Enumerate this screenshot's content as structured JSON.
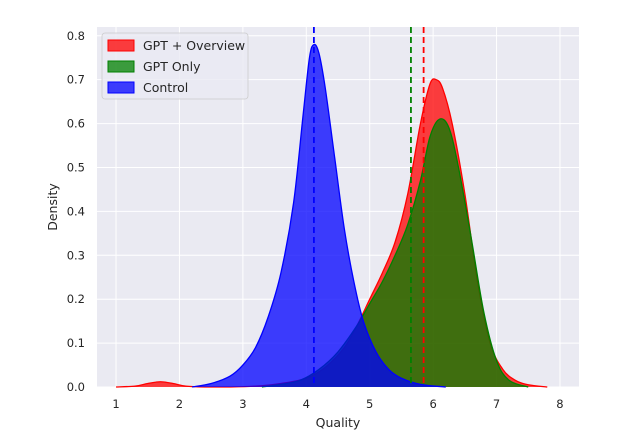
{
  "chart_data": {
    "type": "area",
    "title": "",
    "xlabel": "Quality",
    "ylabel": "Density",
    "xlim": [
      0.7,
      8.3
    ],
    "ylim": [
      0,
      0.82
    ],
    "xticks": [
      1,
      2,
      3,
      4,
      5,
      6,
      7,
      8
    ],
    "yticks": [
      0.0,
      0.1,
      0.2,
      0.3,
      0.4,
      0.5,
      0.6,
      0.7,
      0.8
    ],
    "x_tick_labels": [
      "1",
      "2",
      "3",
      "4",
      "5",
      "6",
      "7",
      "8"
    ],
    "y_tick_labels": [
      "0.0",
      "0.1",
      "0.2",
      "0.3",
      "0.4",
      "0.5",
      "0.6",
      "0.7",
      "0.8"
    ],
    "grid": true,
    "legend_position": "top-left",
    "series": [
      {
        "name": "GPT + Overview",
        "color": "#ff0000",
        "mean": 5.85,
        "points": [
          [
            1.0,
            0.0
          ],
          [
            1.3,
            0.002
          ],
          [
            1.5,
            0.008
          ],
          [
            1.7,
            0.012
          ],
          [
            1.9,
            0.008
          ],
          [
            2.1,
            0.002
          ],
          [
            2.4,
            0.0
          ],
          [
            2.8,
            0.0
          ],
          [
            3.2,
            0.002
          ],
          [
            3.6,
            0.008
          ],
          [
            4.0,
            0.02
          ],
          [
            4.3,
            0.045
          ],
          [
            4.6,
            0.09
          ],
          [
            4.8,
            0.14
          ],
          [
            5.0,
            0.2
          ],
          [
            5.2,
            0.26
          ],
          [
            5.4,
            0.33
          ],
          [
            5.6,
            0.44
          ],
          [
            5.8,
            0.6
          ],
          [
            5.95,
            0.69
          ],
          [
            6.05,
            0.7
          ],
          [
            6.15,
            0.68
          ],
          [
            6.3,
            0.6
          ],
          [
            6.5,
            0.44
          ],
          [
            6.7,
            0.24
          ],
          [
            6.9,
            0.1
          ],
          [
            7.1,
            0.04
          ],
          [
            7.3,
            0.015
          ],
          [
            7.5,
            0.005
          ],
          [
            7.8,
            0.0
          ]
        ]
      },
      {
        "name": "GPT Only",
        "color": "#008000",
        "mean": 5.65,
        "points": [
          [
            3.3,
            0.0
          ],
          [
            3.6,
            0.006
          ],
          [
            3.9,
            0.015
          ],
          [
            4.2,
            0.04
          ],
          [
            4.5,
            0.08
          ],
          [
            4.8,
            0.14
          ],
          [
            5.0,
            0.19
          ],
          [
            5.2,
            0.24
          ],
          [
            5.4,
            0.3
          ],
          [
            5.6,
            0.37
          ],
          [
            5.8,
            0.47
          ],
          [
            5.95,
            0.57
          ],
          [
            6.1,
            0.61
          ],
          [
            6.25,
            0.59
          ],
          [
            6.4,
            0.5
          ],
          [
            6.6,
            0.34
          ],
          [
            6.8,
            0.17
          ],
          [
            7.0,
            0.06
          ],
          [
            7.2,
            0.015
          ],
          [
            7.5,
            0.0
          ]
        ]
      },
      {
        "name": "Control",
        "color": "#0000ff",
        "mean": 4.12,
        "points": [
          [
            2.2,
            0.0
          ],
          [
            2.5,
            0.008
          ],
          [
            2.8,
            0.025
          ],
          [
            3.0,
            0.05
          ],
          [
            3.2,
            0.09
          ],
          [
            3.4,
            0.16
          ],
          [
            3.6,
            0.26
          ],
          [
            3.8,
            0.42
          ],
          [
            3.95,
            0.62
          ],
          [
            4.05,
            0.75
          ],
          [
            4.12,
            0.78
          ],
          [
            4.2,
            0.76
          ],
          [
            4.3,
            0.68
          ],
          [
            4.45,
            0.52
          ],
          [
            4.6,
            0.36
          ],
          [
            4.75,
            0.24
          ],
          [
            4.9,
            0.15
          ],
          [
            5.1,
            0.08
          ],
          [
            5.3,
            0.04
          ],
          [
            5.5,
            0.02
          ],
          [
            5.8,
            0.006
          ],
          [
            6.2,
            0.0
          ]
        ]
      }
    ]
  }
}
